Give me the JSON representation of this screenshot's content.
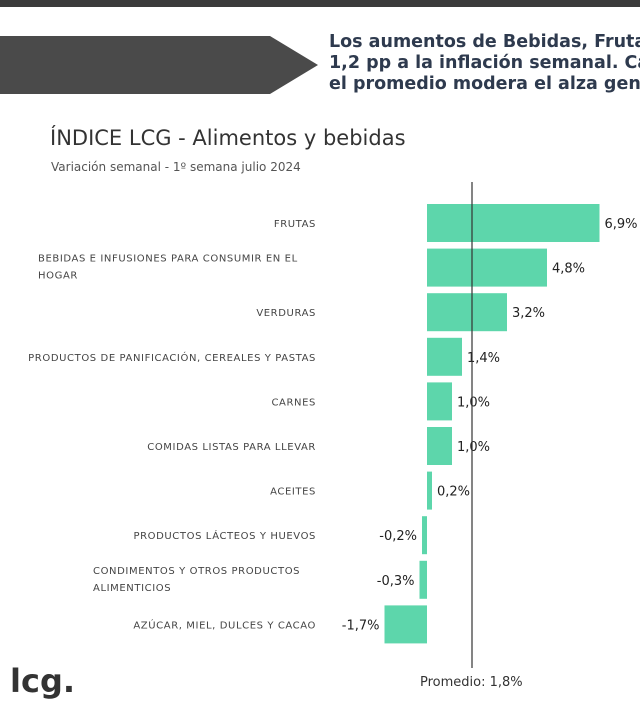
{
  "headline": {
    "lines": [
      "Los aumentos de Bebidas, Frutas y",
      "1,2 pp a la inflación semanal. Ca",
      "el promedio modera el alza gen"
    ]
  },
  "logo": "lcg.",
  "average_label": "Promedio: 1,8%",
  "colors": {
    "bar": "#5dd6ab",
    "avg_line": "#333333",
    "banner": "#4a4a4a",
    "headline": "#2e3a4e"
  },
  "chart_data": {
    "type": "bar",
    "orientation": "horizontal",
    "title": "ÍNDICE LCG - Alimentos y bebidas",
    "subtitle": "Variación semanal - 1º semana julio 2024",
    "categories": [
      [
        "FRUTAS"
      ],
      [
        "BEBIDAS E INFUSIONES PARA CONSUMIR EN EL",
        "HOGAR"
      ],
      [
        "VERDURAS"
      ],
      [
        "PRODUCTOS DE PANIFICACIÓN, CEREALES Y PASTAS"
      ],
      [
        "CARNES"
      ],
      [
        "COMIDAS LISTAS PARA LLEVAR"
      ],
      [
        "ACEITES"
      ],
      [
        "PRODUCTOS LÁCTEOS Y HUEVOS"
      ],
      [
        "CONDIMENTOS Y OTROS PRODUCTOS",
        "ALIMENTICIOS"
      ],
      [
        "AZÚCAR, MIEL, DULCES Y CACAO"
      ]
    ],
    "values": [
      6.9,
      4.8,
      3.2,
      1.4,
      1.0,
      1.0,
      0.2,
      -0.2,
      -0.3,
      -1.7
    ],
    "value_labels": [
      "6,9%",
      "4,8%",
      "3,2%",
      "1,4%",
      "1,0%",
      "1,0%",
      "0,2%",
      "-0,2%",
      "-0,3%",
      "-1,7%"
    ],
    "average": 1.8,
    "xlim": [
      -1.8,
      6.9
    ],
    "grid": false,
    "legend": "none"
  }
}
